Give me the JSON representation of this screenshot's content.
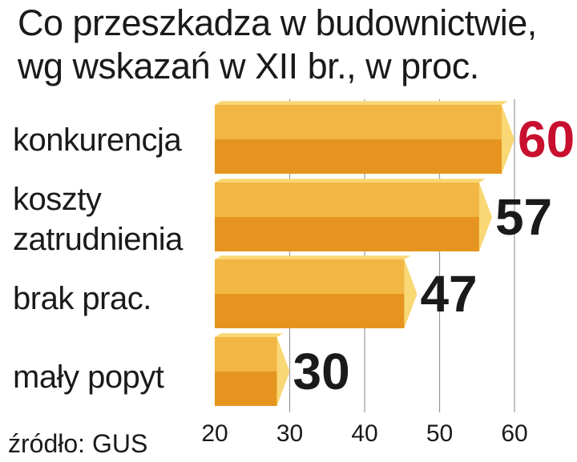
{
  "title_lines": [
    "Co przeszkadza w budownictwie,",
    "wg wskazań w XII br., w proc."
  ],
  "source": "źródło: GUS",
  "colors": {
    "bar_top": "#f2b644",
    "bar_bottom": "#e5951f",
    "bar_cap": "#f9d774",
    "highlight": "#c8102e",
    "text": "#1a1a1a",
    "grid": "#9a9a9a"
  },
  "chart_data": {
    "type": "bar",
    "orientation": "horizontal",
    "title": "Co przeszkadza w budownictwie, wg wskazań w XII br., w proc.",
    "categories": [
      [
        "konkurencja"
      ],
      [
        "koszty",
        "zatrudnienia"
      ],
      [
        "brak prac."
      ],
      [
        "mały popyt"
      ]
    ],
    "values": [
      60,
      57,
      47,
      30
    ],
    "value_labels": [
      "60",
      "57",
      "47",
      "30"
    ],
    "highlighted_index": 0,
    "xlim": [
      20,
      60
    ],
    "ticks": [
      20,
      30,
      40,
      50,
      60
    ],
    "tick_labels": [
      "20",
      "30",
      "40",
      "50",
      "60"
    ],
    "grid": true
  }
}
